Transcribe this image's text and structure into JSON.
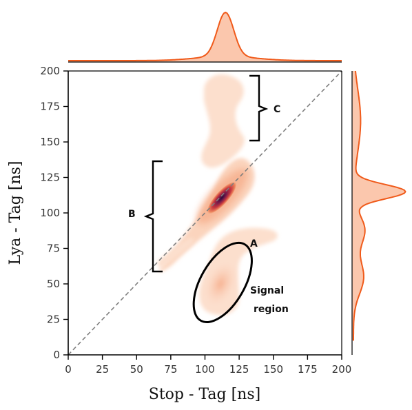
{
  "chart_data": {
    "type": "heatmap",
    "title": "",
    "xlabel": "Stop - Tag [ns]",
    "ylabel": "Lya - Tag [ns]",
    "xlim": [
      0,
      200
    ],
    "ylim": [
      0,
      200
    ],
    "x_ticks": [
      "0",
      "25",
      "50",
      "75",
      "100",
      "125",
      "150",
      "175",
      "200"
    ],
    "y_ticks": [
      "0",
      "25",
      "50",
      "75",
      "100",
      "125",
      "150",
      "175",
      "200"
    ],
    "diagonal_reference": {
      "from": [
        0,
        0
      ],
      "to": [
        200,
        200
      ],
      "style": "dashed",
      "color": "#7f7f7f"
    },
    "colors": {
      "density_low": "#fbd9c4",
      "density_mid": "#e8704f",
      "density_high": "#3d1445",
      "marginal_line": "#f05a1a",
      "marginal_fill": "#fbc7ad"
    },
    "annotations": [
      {
        "label": "A",
        "x": 128,
        "y": 79
      },
      {
        "label": "B",
        "x": 47,
        "y": 100
      },
      {
        "label": "C",
        "x": 156,
        "y": 175
      },
      {
        "label": "Signal region",
        "x": 145,
        "y": 40
      }
    ],
    "brackets": [
      {
        "label": "B",
        "from": 58,
        "to": 138
      },
      {
        "label": "C",
        "from": 152,
        "to": 198
      }
    ],
    "signal_region": {
      "cx": 113,
      "cy": 51,
      "rx": 16,
      "ry": 31,
      "angle_deg": 30
    },
    "density_peaks": [
      {
        "x": 113,
        "y": 116,
        "weight": 1.0
      },
      {
        "x": 113,
        "y": 55,
        "weight": 0.3
      }
    ],
    "marginal_x": {
      "peak": 115,
      "width": 6
    },
    "marginal_y": {
      "peak": 115,
      "width": 5
    }
  }
}
